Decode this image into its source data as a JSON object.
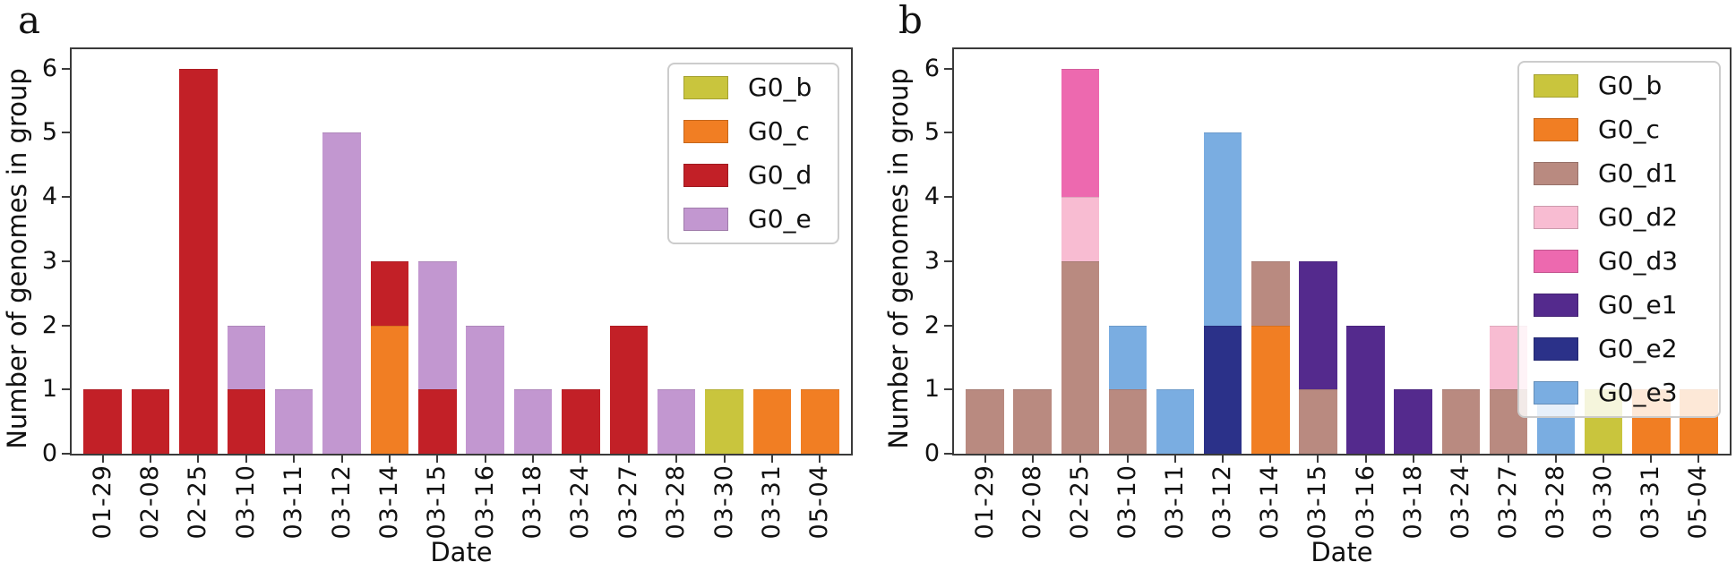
{
  "figure": {
    "background": "#ffffff",
    "spine_color": "#3a3a3a"
  },
  "chart_data": [
    {
      "type": "bar",
      "stacked": true,
      "panel_label": "a",
      "xlabel": "Date",
      "ylabel": "Number of genomes in group",
      "categories": [
        "01-29",
        "02-08",
        "02-25",
        "03-10",
        "03-11",
        "03-12",
        "03-14",
        "03-15",
        "03-16",
        "03-18",
        "03-24",
        "03-27",
        "03-28",
        "03-30",
        "03-31",
        "05-04"
      ],
      "series": [
        {
          "name": "G0_b",
          "color": "#c9c53d",
          "values": [
            0,
            0,
            0,
            0,
            0,
            0,
            0,
            0,
            0,
            0,
            0,
            0,
            0,
            1,
            0,
            0
          ]
        },
        {
          "name": "G0_c",
          "color": "#f17e23",
          "values": [
            0,
            0,
            0,
            0,
            0,
            0,
            2,
            0,
            0,
            0,
            0,
            0,
            0,
            0,
            1,
            1
          ]
        },
        {
          "name": "G0_d",
          "color": "#c22027",
          "values": [
            1,
            1,
            6,
            1,
            0,
            0,
            1,
            1,
            0,
            0,
            1,
            2,
            0,
            0,
            0,
            0
          ]
        },
        {
          "name": "G0_e",
          "color": "#c297d0",
          "values": [
            0,
            0,
            0,
            1,
            1,
            5,
            0,
            2,
            2,
            1,
            0,
            0,
            1,
            0,
            0,
            0
          ]
        }
      ],
      "yticks": [
        0,
        1,
        2,
        3,
        4,
        5,
        6
      ],
      "ylim": [
        0,
        6.3
      ],
      "grid": false,
      "legend_position": "upper right"
    },
    {
      "type": "bar",
      "stacked": true,
      "panel_label": "b",
      "xlabel": "Date",
      "ylabel": "Number of genomes in group",
      "categories": [
        "01-29",
        "02-08",
        "02-25",
        "03-10",
        "03-11",
        "03-12",
        "03-14",
        "03-15",
        "03-16",
        "03-18",
        "03-24",
        "03-27",
        "03-28",
        "03-30",
        "03-31",
        "05-04"
      ],
      "series": [
        {
          "name": "G0_b",
          "color": "#c9c53d",
          "values": [
            0,
            0,
            0,
            0,
            0,
            0,
            0,
            0,
            0,
            0,
            0,
            0,
            0,
            1,
            0,
            0
          ]
        },
        {
          "name": "G0_c",
          "color": "#f17e23",
          "values": [
            0,
            0,
            0,
            0,
            0,
            0,
            2,
            0,
            0,
            0,
            0,
            0,
            0,
            0,
            1,
            1
          ]
        },
        {
          "name": "G0_d1",
          "color": "#b98a80",
          "values": [
            1,
            1,
            3,
            1,
            0,
            0,
            1,
            1,
            0,
            0,
            1,
            1,
            0,
            0,
            0,
            0
          ]
        },
        {
          "name": "G0_d2",
          "color": "#f8bcd2",
          "values": [
            0,
            0,
            1,
            0,
            0,
            0,
            0,
            0,
            0,
            0,
            0,
            1,
            0,
            0,
            0,
            0
          ]
        },
        {
          "name": "G0_d3",
          "color": "#ed69af",
          "values": [
            0,
            0,
            2,
            0,
            0,
            0,
            0,
            0,
            0,
            0,
            0,
            0,
            0,
            0,
            0,
            0
          ]
        },
        {
          "name": "G0_e1",
          "color": "#542a8d",
          "values": [
            0,
            0,
            0,
            0,
            0,
            0,
            0,
            2,
            2,
            1,
            0,
            0,
            0,
            0,
            0,
            0
          ]
        },
        {
          "name": "G0_e2",
          "color": "#2b3189",
          "values": [
            0,
            0,
            0,
            0,
            0,
            2,
            0,
            0,
            0,
            0,
            0,
            0,
            0,
            0,
            0,
            0
          ]
        },
        {
          "name": "G0_e3",
          "color": "#7aade1",
          "values": [
            0,
            0,
            0,
            1,
            1,
            3,
            0,
            0,
            0,
            0,
            0,
            0,
            1,
            0,
            0,
            0
          ]
        }
      ],
      "yticks": [
        0,
        1,
        2,
        3,
        4,
        5,
        6
      ],
      "ylim": [
        0,
        6.3
      ],
      "grid": false,
      "legend_position": "upper right"
    }
  ]
}
